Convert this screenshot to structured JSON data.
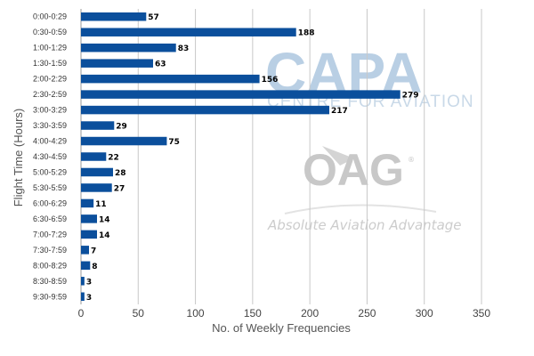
{
  "chart_data": {
    "type": "bar",
    "orientation": "horizontal",
    "title": "",
    "xlabel": "No. of Weekly Frequencies",
    "ylabel": "Flight Time (Hours)",
    "xlim": [
      0,
      350
    ],
    "xticks": [
      0,
      50,
      100,
      150,
      200,
      250,
      300,
      350
    ],
    "grid": "vertical",
    "legend": "none",
    "bar_color": "#0b4f9c",
    "categories": [
      "0:00-0:29",
      "0:30-0:59",
      "1:00-1:29",
      "1:30-1:59",
      "2:00-2:29",
      "2:30-2:59",
      "3:00-3:29",
      "3:30-3:59",
      "4:00-4:29",
      "4:30-4:59",
      "5:00-5:29",
      "5:30-5:59",
      "6:00-6:29",
      "6:30-6:59",
      "7:00-7:29",
      "7:30-7:59",
      "8:00-8:29",
      "8:30-8:59",
      "9:30-9:59"
    ],
    "values": [
      57,
      188,
      83,
      63,
      156,
      279,
      217,
      29,
      75,
      22,
      28,
      27,
      11,
      14,
      14,
      7,
      8,
      3,
      3
    ]
  },
  "watermarks": {
    "capa": "CAPA",
    "capa_sub": "CENTRE FOR AVIATION",
    "oag": "OAG",
    "oag_reg": "®",
    "tagline": "Absolute Aviation Advantage"
  },
  "colors": {
    "capa": "#b9cfe4",
    "oag": "#c8c8c8",
    "grid": "#c8c8c8"
  }
}
